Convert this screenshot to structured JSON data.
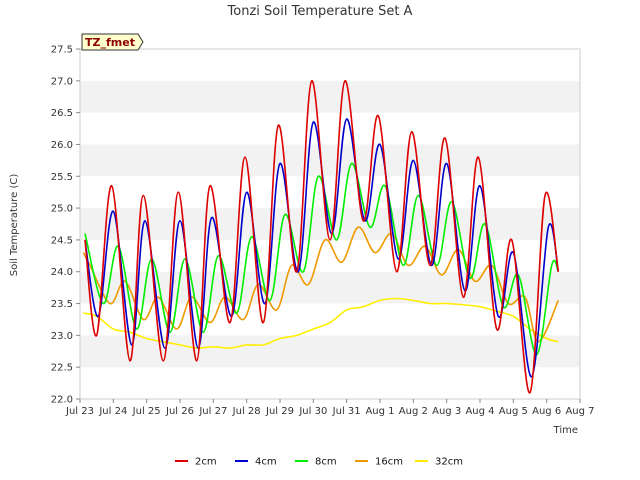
{
  "chart_data": {
    "type": "line",
    "title": "Tonzi Soil Temperature Set A",
    "xlabel": "Time",
    "ylabel": "Soil Temperature (C)",
    "ylim": [
      22.0,
      27.5
    ],
    "xlim": [
      0,
      15
    ],
    "grid": "horizontal bands",
    "legend": "bottom-center",
    "badge": "TZ_fmet",
    "x_ticks": [
      {
        "x": 0,
        "label": "Jul 23"
      },
      {
        "x": 1,
        "label": "Jul 24"
      },
      {
        "x": 2,
        "label": "Jul 25"
      },
      {
        "x": 3,
        "label": "Jul 26"
      },
      {
        "x": 4,
        "label": "Jul 27"
      },
      {
        "x": 5,
        "label": "Jul 28"
      },
      {
        "x": 6,
        "label": "Jul 29"
      },
      {
        "x": 7,
        "label": "Jul 30"
      },
      {
        "x": 8,
        "label": "Jul 31"
      },
      {
        "x": 9,
        "label": "Aug 1"
      },
      {
        "x": 10,
        "label": "Aug 2"
      },
      {
        "x": 11,
        "label": "Aug 3"
      },
      {
        "x": 12,
        "label": "Aug 4"
      },
      {
        "x": 13,
        "label": "Aug 5"
      },
      {
        "x": 14,
        "label": "Aug 6"
      },
      {
        "x": 15,
        "label": "Aug 7"
      }
    ],
    "y_ticks": [
      {
        "y": 22.0,
        "label": "22.0"
      },
      {
        "y": 22.5,
        "label": "22.5"
      },
      {
        "y": 23.0,
        "label": "23.0"
      },
      {
        "y": 23.5,
        "label": "23.5"
      },
      {
        "y": 24.0,
        "label": "24.0"
      },
      {
        "y": 24.5,
        "label": "24.5"
      },
      {
        "y": 25.0,
        "label": "25.0"
      },
      {
        "y": 25.5,
        "label": "25.5"
      },
      {
        "y": 26.0,
        "label": "26.0"
      },
      {
        "y": 26.5,
        "label": "26.5"
      },
      {
        "y": 27.0,
        "label": "27.0"
      },
      {
        "y": 27.5,
        "label": "27.5"
      }
    ],
    "series": [
      {
        "name": "2cm",
        "color": "#dd0000",
        "x": [
          0.15,
          0.5,
          0.95,
          1.5,
          1.9,
          2.5,
          2.95,
          3.5,
          3.9,
          4.5,
          4.95,
          5.5,
          5.95,
          6.5,
          6.95,
          7.5,
          7.95,
          8.5,
          8.95,
          9.5,
          9.95,
          10.5,
          10.95,
          11.5,
          11.95,
          12.5,
          12.95,
          13.5,
          13.95,
          14.35
        ],
        "values": [
          24.5,
          23.0,
          25.35,
          22.6,
          25.2,
          22.6,
          25.25,
          22.6,
          25.35,
          23.2,
          25.8,
          23.2,
          26.3,
          24.0,
          27.0,
          24.5,
          27.0,
          24.8,
          26.45,
          24.0,
          26.2,
          24.1,
          26.1,
          23.6,
          25.8,
          23.1,
          24.5,
          22.1,
          25.2,
          24.0
        ]
      },
      {
        "name": "4cm",
        "color": "#0000cc",
        "x": [
          0.15,
          0.55,
          1.0,
          1.55,
          1.95,
          2.55,
          3.0,
          3.55,
          3.95,
          4.55,
          5.0,
          5.55,
          6.0,
          6.55,
          7.0,
          7.55,
          8.0,
          8.55,
          9.0,
          9.55,
          10.0,
          10.55,
          11.0,
          11.55,
          12.0,
          12.55,
          13.0,
          13.55,
          14.05,
          14.35
        ],
        "values": [
          24.5,
          23.3,
          24.95,
          22.85,
          24.8,
          22.8,
          24.8,
          22.8,
          24.85,
          23.3,
          25.25,
          23.5,
          25.7,
          24.0,
          26.35,
          24.6,
          26.4,
          24.8,
          26.0,
          24.2,
          25.75,
          24.1,
          25.7,
          23.7,
          25.35,
          23.3,
          24.3,
          22.35,
          24.7,
          24.0
        ]
      },
      {
        "name": "8cm",
        "color": "#00ee00",
        "x": [
          0.15,
          0.7,
          1.15,
          1.7,
          2.15,
          2.7,
          3.15,
          3.7,
          4.15,
          4.7,
          5.15,
          5.7,
          6.15,
          6.7,
          7.15,
          7.7,
          8.15,
          8.7,
          9.15,
          9.7,
          10.15,
          10.7,
          11.15,
          11.7,
          12.15,
          12.7,
          13.15,
          13.7,
          14.15,
          14.35
        ],
        "values": [
          24.6,
          23.5,
          24.4,
          23.1,
          24.2,
          23.05,
          24.2,
          23.05,
          24.25,
          23.35,
          24.55,
          23.55,
          24.9,
          24.0,
          25.5,
          24.5,
          25.7,
          24.7,
          25.35,
          24.1,
          25.2,
          24.1,
          25.1,
          23.9,
          24.75,
          23.45,
          23.95,
          22.7,
          24.1,
          24.0
        ]
      },
      {
        "name": "16cm",
        "color": "#ee9900",
        "x": [
          0.1,
          0.3,
          0.9,
          1.35,
          1.9,
          2.35,
          2.9,
          3.35,
          3.9,
          4.35,
          4.9,
          5.35,
          5.9,
          6.35,
          6.85,
          7.35,
          7.85,
          8.35,
          8.85,
          9.35,
          9.85,
          10.35,
          10.85,
          11.35,
          11.85,
          12.35,
          12.85,
          13.35,
          13.75,
          14.35
        ],
        "values": [
          24.3,
          24.1,
          23.5,
          23.85,
          23.25,
          23.6,
          23.1,
          23.6,
          23.2,
          23.6,
          23.25,
          23.8,
          23.4,
          24.1,
          23.8,
          24.5,
          24.15,
          24.7,
          24.3,
          24.6,
          24.1,
          24.4,
          23.95,
          24.35,
          23.85,
          24.1,
          23.5,
          23.6,
          22.9,
          23.55
        ]
      },
      {
        "name": "32cm",
        "color": "#ffee00",
        "x": [
          0.1,
          0.5,
          1.0,
          1.5,
          2.0,
          2.5,
          3.0,
          3.5,
          4.0,
          4.5,
          5.0,
          5.5,
          6.0,
          6.5,
          7.0,
          7.5,
          8.0,
          8.5,
          9.0,
          9.5,
          10.0,
          10.5,
          11.0,
          11.5,
          12.0,
          12.5,
          13.0,
          13.5,
          14.0,
          14.35
        ],
        "values": [
          23.35,
          23.3,
          23.1,
          23.05,
          22.95,
          22.9,
          22.85,
          22.8,
          22.82,
          22.8,
          22.85,
          22.85,
          22.95,
          23.0,
          23.1,
          23.2,
          23.4,
          23.45,
          23.55,
          23.58,
          23.55,
          23.5,
          23.5,
          23.48,
          23.45,
          23.38,
          23.3,
          23.1,
          22.95,
          22.9
        ]
      }
    ]
  }
}
